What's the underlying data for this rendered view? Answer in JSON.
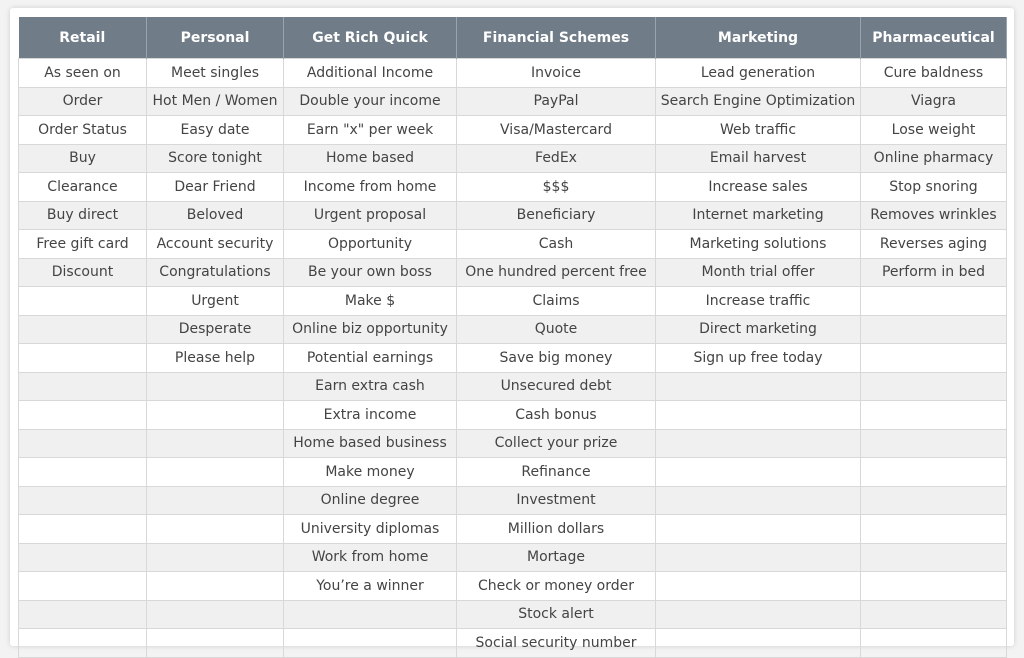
{
  "table": {
    "columns": [
      {
        "header": "Retail",
        "items": [
          "As seen on",
          "Order",
          "Order Status",
          "Buy",
          "Clearance",
          "Buy direct",
          "Free gift card",
          "Discount"
        ]
      },
      {
        "header": "Personal",
        "items": [
          "Meet singles",
          "Hot Men / Women",
          "Easy date",
          "Score tonight",
          "Dear Friend",
          "Beloved",
          "Account security",
          "Congratulations",
          "Urgent",
          "Desperate",
          "Please help"
        ]
      },
      {
        "header": "Get Rich Quick",
        "items": [
          "Additional Income",
          "Double your income",
          "Earn \"x\" per week",
          "Home based",
          "Income from home",
          "Urgent proposal",
          "Opportunity",
          "Be your own boss",
          "Make $",
          "Online biz opportunity",
          "Potential earnings",
          "Earn extra cash",
          "Extra income",
          "Home based business",
          "Make money",
          "Online degree",
          "University diplomas",
          "Work from home",
          "You’re a winner"
        ]
      },
      {
        "header": "Financial Schemes",
        "items": [
          "Invoice",
          "PayPal",
          "Visa/Mastercard",
          "FedEx",
          "$$$",
          "Beneficiary",
          "Cash",
          "One hundred percent free",
          "Claims",
          "Quote",
          "Save big money",
          "Unsecured debt",
          "Cash bonus",
          "Collect your prize",
          "Refinance",
          "Investment",
          "Million dollars",
          "Mortage",
          "Check or money order",
          "Stock alert",
          "Social security number"
        ]
      },
      {
        "header": "Marketing",
        "items": [
          "Lead generation",
          "Search Engine Optimization",
          "Web traffic",
          "Email harvest",
          "Increase sales",
          "Internet marketing",
          "Marketing solutions",
          "Month trial offer",
          "Increase traffic",
          "Direct marketing",
          "Sign up free today"
        ]
      },
      {
        "header": "Pharmaceutical",
        "items": [
          "Cure baldness",
          "Viagra",
          "Lose weight",
          "Online pharmacy",
          "Stop snoring",
          "Removes wrinkles",
          "Reverses aging",
          "Perform in bed"
        ]
      }
    ]
  }
}
